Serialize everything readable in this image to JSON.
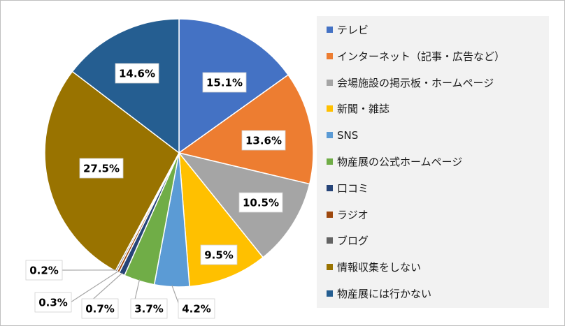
{
  "chart_data": {
    "type": "pie",
    "title": "",
    "legend_placement": "right",
    "slices": [
      {
        "name": "テレビ",
        "value": 15.1,
        "label": "15.1%",
        "color": "#4472c4"
      },
      {
        "name": "インターネット（記事・広告など）",
        "value": 13.6,
        "label": "13.6%",
        "color": "#ed7d31"
      },
      {
        "name": "会場施設の掲示板・ホームページ",
        "value": 10.5,
        "label": "10.5%",
        "color": "#a5a5a5"
      },
      {
        "name": "新聞・雑誌",
        "value": 9.5,
        "label": "9.5%",
        "color": "#ffc000"
      },
      {
        "name": "SNS",
        "value": 4.2,
        "label": "4.2%",
        "color": "#5b9bd5"
      },
      {
        "name": "物産展の公式ホームページ",
        "value": 3.7,
        "label": "3.7%",
        "color": "#70ad47"
      },
      {
        "name": "口コミ",
        "value": 0.7,
        "label": "0.7%",
        "color": "#264478"
      },
      {
        "name": "ラジオ",
        "value": 0.3,
        "label": "0.3%",
        "color": "#9e480e"
      },
      {
        "name": "ブログ",
        "value": 0.2,
        "label": "0.2%",
        "color": "#636363"
      },
      {
        "name": "情報収集をしない",
        "value": 27.5,
        "label": "27.5%",
        "color": "#997300"
      },
      {
        "name": "物産展には行かない",
        "value": 14.6,
        "label": "14.6%",
        "color": "#255e91"
      }
    ]
  }
}
